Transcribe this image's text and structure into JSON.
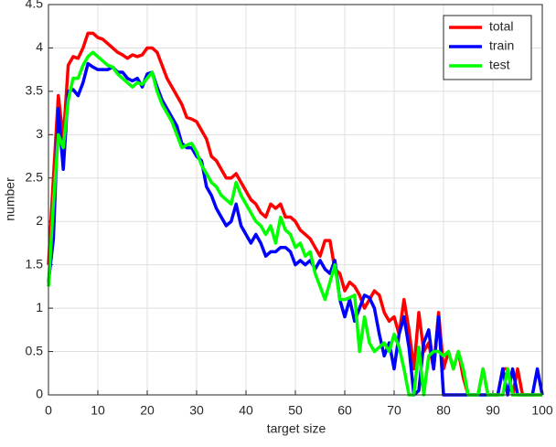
{
  "chart_data": {
    "type": "line",
    "xlabel": "target size",
    "ylabel": "number",
    "x": [
      0,
      1,
      2,
      3,
      4,
      5,
      6,
      7,
      8,
      9,
      10,
      11,
      12,
      13,
      14,
      15,
      16,
      17,
      18,
      19,
      20,
      21,
      22,
      23,
      24,
      25,
      26,
      27,
      28,
      29,
      30,
      31,
      32,
      33,
      34,
      35,
      36,
      37,
      38,
      39,
      40,
      41,
      42,
      43,
      44,
      45,
      46,
      47,
      48,
      49,
      50,
      51,
      52,
      53,
      54,
      55,
      56,
      57,
      58,
      59,
      60,
      61,
      62,
      63,
      64,
      65,
      66,
      67,
      68,
      69,
      70,
      71,
      72,
      73,
      74,
      75,
      76,
      77,
      78,
      79,
      80,
      81,
      82,
      83,
      84,
      85,
      86,
      87,
      88,
      89,
      90,
      91,
      92,
      93,
      94,
      95,
      96,
      97,
      98,
      99,
      100
    ],
    "series": [
      {
        "name": "total",
        "color": "#ff0000",
        "values": [
          1.5,
          2.5,
          3.45,
          2.95,
          3.8,
          3.9,
          3.88,
          4.0,
          4.17,
          4.17,
          4.12,
          4.1,
          4.05,
          4.0,
          3.95,
          3.92,
          3.88,
          3.92,
          3.9,
          3.92,
          4.0,
          4.0,
          3.95,
          3.8,
          3.65,
          3.55,
          3.45,
          3.35,
          3.2,
          3.18,
          3.15,
          3.05,
          2.95,
          2.75,
          2.7,
          2.6,
          2.5,
          2.5,
          2.55,
          2.45,
          2.35,
          2.25,
          2.2,
          2.1,
          2.05,
          2.2,
          2.15,
          2.2,
          2.05,
          2.05,
          2.0,
          1.9,
          1.85,
          1.8,
          1.7,
          1.6,
          1.78,
          1.78,
          1.45,
          1.4,
          1.2,
          1.3,
          1.25,
          1.15,
          1.0,
          1.1,
          1.2,
          1.15,
          0.95,
          0.85,
          0.9,
          0.7,
          1.1,
          0.75,
          0.3,
          0.95,
          0.5,
          0.6,
          0.3,
          0.95,
          0.3,
          0.5,
          0.3,
          0.5,
          0.2,
          0,
          0,
          0,
          0.3,
          0,
          0,
          0,
          0.3,
          0.3,
          0,
          0.3,
          0,
          0,
          0,
          0,
          0
        ]
      },
      {
        "name": "train",
        "color": "#0000ff",
        "values": [
          1.3,
          1.8,
          3.3,
          2.6,
          3.5,
          3.52,
          3.45,
          3.6,
          3.82,
          3.78,
          3.75,
          3.75,
          3.75,
          3.78,
          3.72,
          3.72,
          3.65,
          3.62,
          3.65,
          3.55,
          3.7,
          3.72,
          3.55,
          3.4,
          3.3,
          3.2,
          3.1,
          2.9,
          2.85,
          2.85,
          2.75,
          2.7,
          2.4,
          2.3,
          2.15,
          2.05,
          1.95,
          2.0,
          2.2,
          1.95,
          1.85,
          1.75,
          1.85,
          1.75,
          1.6,
          1.65,
          1.65,
          1.7,
          1.7,
          1.65,
          1.5,
          1.55,
          1.5,
          1.55,
          1.45,
          1.55,
          1.45,
          1.4,
          1.55,
          1.1,
          0.9,
          1.1,
          0.85,
          1.0,
          1.15,
          1.12,
          1.0,
          0.7,
          0.45,
          0.6,
          0.3,
          0.7,
          0.9,
          0.55,
          0,
          0.05,
          0.6,
          0.75,
          0.3,
          0.9,
          0,
          0,
          0,
          0,
          0,
          0,
          0,
          0,
          0,
          0,
          0,
          0,
          0.3,
          0,
          0.3,
          0,
          0,
          0,
          0,
          0.3,
          0
        ]
      },
      {
        "name": "test",
        "color": "#00ff00",
        "values": [
          1.25,
          2.2,
          3.0,
          2.85,
          3.4,
          3.65,
          3.65,
          3.8,
          3.9,
          3.95,
          3.9,
          3.85,
          3.8,
          3.78,
          3.7,
          3.65,
          3.6,
          3.55,
          3.6,
          3.58,
          3.65,
          3.72,
          3.5,
          3.35,
          3.25,
          3.15,
          3.0,
          2.85,
          2.88,
          2.9,
          2.8,
          2.65,
          2.55,
          2.45,
          2.4,
          2.3,
          2.25,
          2.2,
          2.45,
          2.3,
          2.2,
          2.1,
          2.0,
          1.95,
          1.85,
          1.95,
          1.75,
          2.05,
          1.9,
          1.85,
          1.7,
          1.75,
          1.6,
          1.65,
          1.4,
          1.25,
          1.1,
          1.3,
          1.5,
          1.1,
          1.1,
          1.12,
          1.15,
          0.5,
          0.9,
          0.6,
          0.5,
          0.55,
          0.6,
          0.5,
          0.7,
          0.55,
          0.3,
          0,
          0,
          0.55,
          0,
          0.45,
          0.5,
          0.5,
          0.45,
          0.5,
          0.3,
          0.5,
          0.3,
          0,
          0,
          0,
          0.3,
          0,
          0,
          0,
          0,
          0.3,
          0,
          0,
          0,
          0,
          0,
          0,
          0
        ]
      }
    ],
    "xlim": [
      0,
      100
    ],
    "xticks": [
      0,
      10,
      20,
      30,
      40,
      50,
      60,
      70,
      80,
      90,
      100
    ],
    "ylim": [
      0,
      4.5
    ],
    "yticks": [
      0,
      0.5,
      1,
      1.5,
      2,
      2.5,
      3,
      3.5,
      4,
      4.5
    ],
    "grid": true,
    "legend": "northeast"
  }
}
